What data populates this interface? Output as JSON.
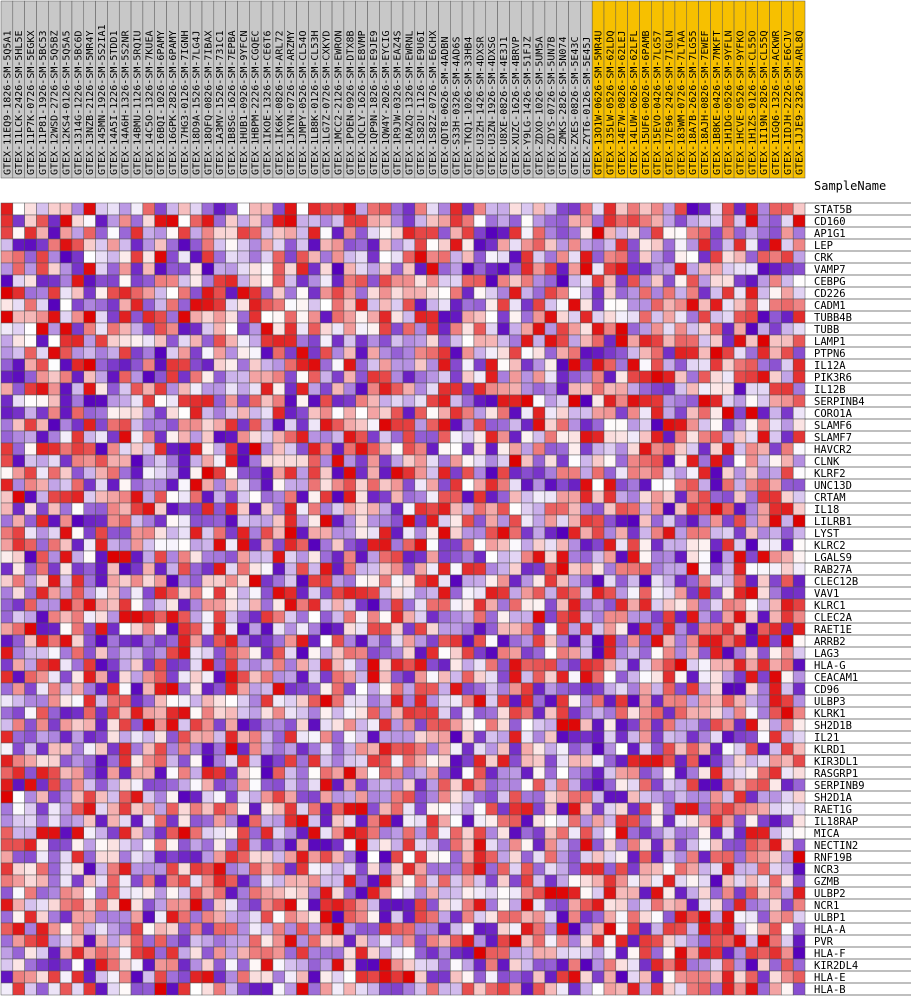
{
  "chart_data": {
    "type": "heatmap",
    "column_header": "SampleName",
    "columns": [
      "GTEX-11EQ9-1826-SM-5Q5A1",
      "GTEX-11LCK-2426-SM-5HL5E",
      "GTEX-11P7K-0726-SM-5EGKX",
      "GTEX-11P81-1926-SM-5BC53",
      "GTEX-12WSD-2726-SM-5Q5BZ",
      "GTEX-12KS4-0126-SM-5Q5A5",
      "GTEX-1314G-1226-SM-5BC6D",
      "GTEX-13NZB-2126-SM-5MR4Y",
      "GTEX-145MN-1926-SM-5S2IA1",
      "GTEX-14A5I-1226-SM-5TDD1",
      "GTEX-14A6H-1326-SM-5S2NR",
      "GTEX-14BMU-1126-SM-5RQIU",
      "GTEX-14C5O-1326-SM-7KUEA",
      "GTEX-16BQI-1026-SM-6PAMY",
      "GTEX-16GPK-2826-SM-6PAMY",
      "GTEX-17HG3-0126-SM-7IGNH",
      "GTEX-18D9A-1526-SM-7LG4J",
      "GTEX-18QFQ-0826-SM-7IBAX",
      "GTEX-1A3MV-1526-SM-731C1",
      "GTEX-1B8SG-1626-SM-7EPBA",
      "GTEX-1HUB1-0926-SM-9YFCN",
      "GTEX-1HBPM-2226-SM-CGQEC",
      "GTEX-1IKOE-1326-SM-CE6T6",
      "GTEX-1IK6K-0826-SM-ARL72",
      "GTEX-1JKYN-0726-SM-ARZMY",
      "GTEX-1JMPY-0526-SM-CL54O",
      "GTEX-1LB8K-0126-SM-CL53H",
      "GTEX-1LG7Z-0726-SM-CXKYD",
      "GTEX-1MCC2-2126-SM-EWRON",
      "GTEX-1POEN-0926-SM-DTX8B",
      "GTEX-1QCLY-1626-SM-E8VMP",
      "GTEX-1QP9N-1826-SM-E9JE9",
      "GTEX-1QW4Y-2026-SM-EYCIG",
      "GTEX-1R9JW-0326-SM-EAZ4S",
      "GTEX-1RAZQ-1326-SM-EWRNL",
      "GTEX-1S82U-1126-SM-E9U6I",
      "GTEX-1S82Z-0726-SM-E6CHX",
      "GTEX-QDT8-0626-SM-4ADBN",
      "GTEX-S33H-0326-SM-4AD6S",
      "GTEX-TKQ1-1026-SM-33HB4",
      "GTEX-U3ZH-1426-SM-4DXSR",
      "GTEX-U3ZN-1926-SM-4DXSG",
      "GTEX-U8XE-0826-SM-4E3J1",
      "GTEX-XUZC-1626-SM-4BRVP",
      "GTEX-Y9LG-1426-SM-51FJZ",
      "GTEX-ZDXO-1026-SM-5UM5A",
      "GTEX-ZDYS-0726-SM-5UN7B",
      "GTEX-ZMKS-2826-SM-5N074",
      "GTEX-ZXES-0826-SM-5E43C",
      "GTEX-ZYT6-0126-SM-5E45J",
      "GTEX-13O1W-0626-SM-5MR4U",
      "GTEX-135LW-0526-SM-62LDQ",
      "GTEX-14E7W-0826-SM-62LEJ",
      "GTEX-14LUW-0626-SM-62LFL",
      "GTEX-15UF6-0026-SM-6PAMB",
      "GTEX-15EVO-0426-SM-7LG57",
      "GTEX-17E96-2426-SM-7IGLN",
      "GTEX-183WM-0726-SM-7LTAA",
      "GTEX-18A7B-2626-SM-7LG55",
      "GTEX-18AJH-0826-SM-7EWEF",
      "GTEX-1B8KE-0426-SM-7MKFT",
      "GTEX-1H1DG-0526-SM-9YFLN",
      "GTEX-1HCVE-0526-SM-9YFKO",
      "GTEX-1H1ZS-0126-SM-CL55O",
      "GTEX-1I19N-2826-SM-CL55Q",
      "GTEX-1IGQ6-1326-SM-ACKWR",
      "GTEX-1IDJH-2226-SM-E6CJV",
      "GTEX-1JJE9-2326-SM-ARL8Q"
    ],
    "highlighted_from_column": 50,
    "rows": [
      "STAT5B",
      "CD160",
      "AP1G1",
      "LEP",
      "CRK",
      "VAMP7",
      "CEBPG",
      "CD226",
      "CADM1",
      "TUBB4B",
      "TUBB",
      "LAMP1",
      "PTPN6",
      "IL12A",
      "PIK3R6",
      "IL12B",
      "SERPINB4",
      "CORO1A",
      "SLAMF6",
      "SLAMF7",
      "HAVCR2",
      "CLNK",
      "KLRF2",
      "UNC13D",
      "CRTAM",
      "IL18",
      "LILRB1",
      "LYST",
      "KLRC2",
      "LGALS9",
      "RAB27A",
      "CLEC12B",
      "VAV1",
      "KLRC1",
      "CLEC2A",
      "RAET1E",
      "ARRB2",
      "LAG3",
      "HLA-G",
      "CEACAM1",
      "CD96",
      "ULBP3",
      "KLRK1",
      "SH2D1B",
      "IL21",
      "KLRD1",
      "KIR3DL1",
      "RASGRP1",
      "SERPINB9",
      "SH2D1A",
      "RAET1G",
      "IL18RAP",
      "MICA",
      "NECTIN2",
      "RNF19B",
      "NCR3",
      "GZMB",
      "ULBP2",
      "NCR1",
      "ULBP1",
      "HLA-A",
      "PVR",
      "HLA-F",
      "KIR2DL4",
      "HLA-E",
      "HLA-B"
    ],
    "value_range": [
      -3,
      3
    ],
    "colormap": [
      "#5500bb",
      "#ffffff",
      "#dd0000"
    ],
    "values": []
  },
  "colors": {
    "header_default": "#c8c8c8",
    "header_highlight": "#f7c000",
    "grid": "#555555"
  }
}
